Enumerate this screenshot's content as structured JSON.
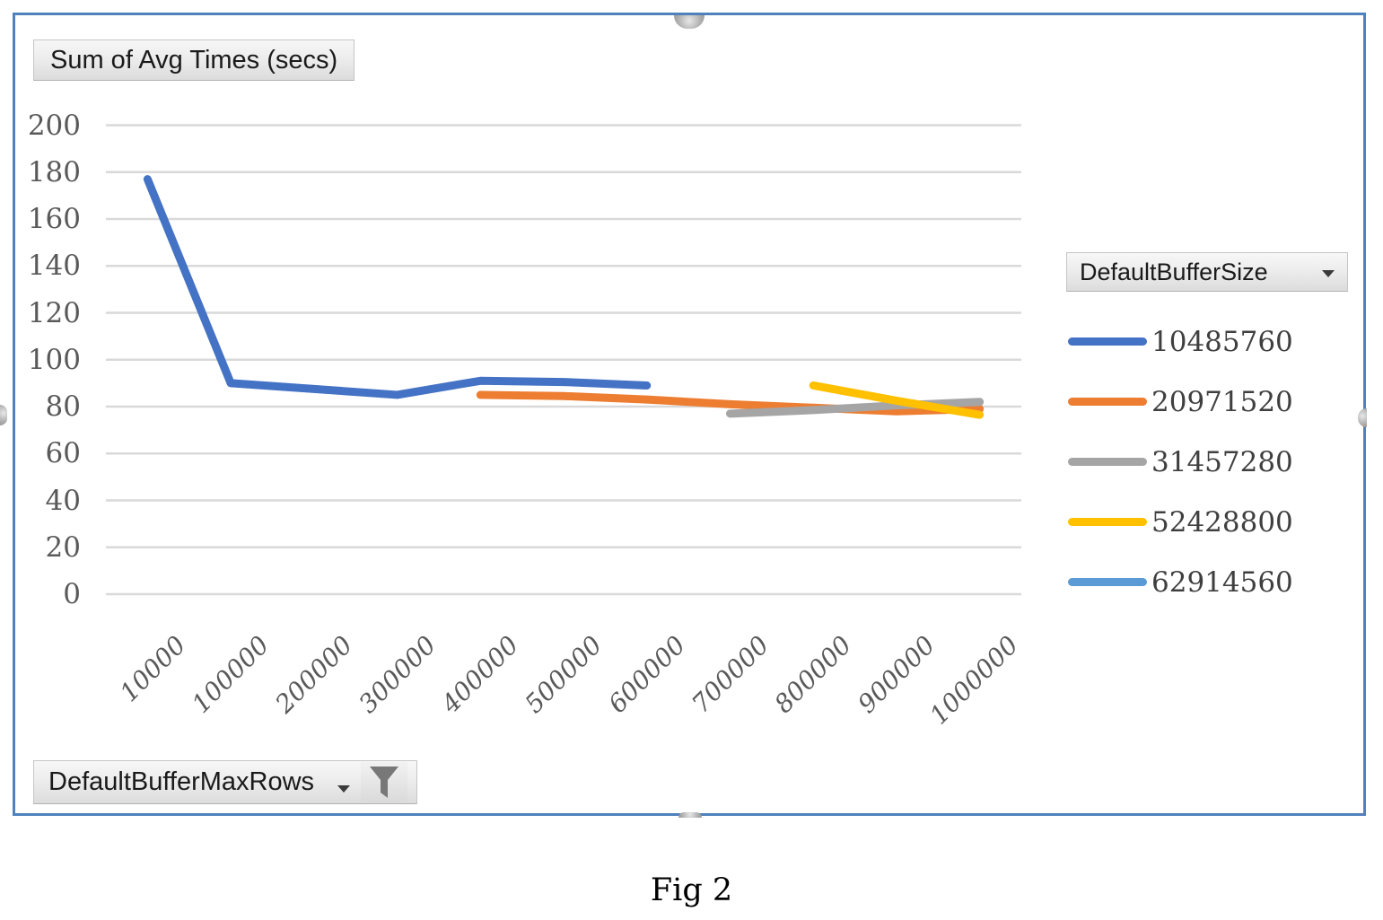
{
  "figure": {
    "caption": "Fig 2"
  },
  "icons": {
    "legend_dropdown": "dropdown-arrow",
    "axis_dropdown": "dropdown-arrow",
    "axis_filter": "funnel-filter"
  },
  "chart_data": {
    "type": "line",
    "title": "Sum of Avg Times (secs)",
    "legend_title": "DefaultBufferSize",
    "x_field": "DefaultBufferMaxRows",
    "legend_position": "right",
    "grid": true,
    "ylim": [
      0,
      200
    ],
    "yticks": [
      0,
      20,
      40,
      60,
      80,
      100,
      120,
      140,
      160,
      180,
      200
    ],
    "categories": [
      10000,
      100000,
      200000,
      300000,
      400000,
      500000,
      600000,
      700000,
      800000,
      900000,
      1000000
    ],
    "series": [
      {
        "name": "10485760",
        "color": "#4472C4",
        "values": [
          177,
          90,
          87.5,
          85,
          91,
          90.5,
          89,
          null,
          null,
          null,
          null
        ]
      },
      {
        "name": "20971520",
        "color": "#ED7D31",
        "values": [
          null,
          null,
          null,
          null,
          85,
          84.5,
          83,
          81,
          79.5,
          78,
          79
        ]
      },
      {
        "name": "31457280",
        "color": "#A5A5A5",
        "values": [
          null,
          null,
          null,
          null,
          null,
          null,
          null,
          77,
          78.5,
          80.5,
          82
        ]
      },
      {
        "name": "52428800",
        "color": "#FFC000",
        "values": [
          null,
          null,
          null,
          null,
          null,
          null,
          null,
          null,
          89,
          82.5,
          76.5
        ]
      },
      {
        "name": "62914560",
        "color": "#5B9BD5",
        "values": [
          null,
          null,
          null,
          null,
          null,
          null,
          null,
          null,
          null,
          null,
          null
        ]
      }
    ]
  }
}
